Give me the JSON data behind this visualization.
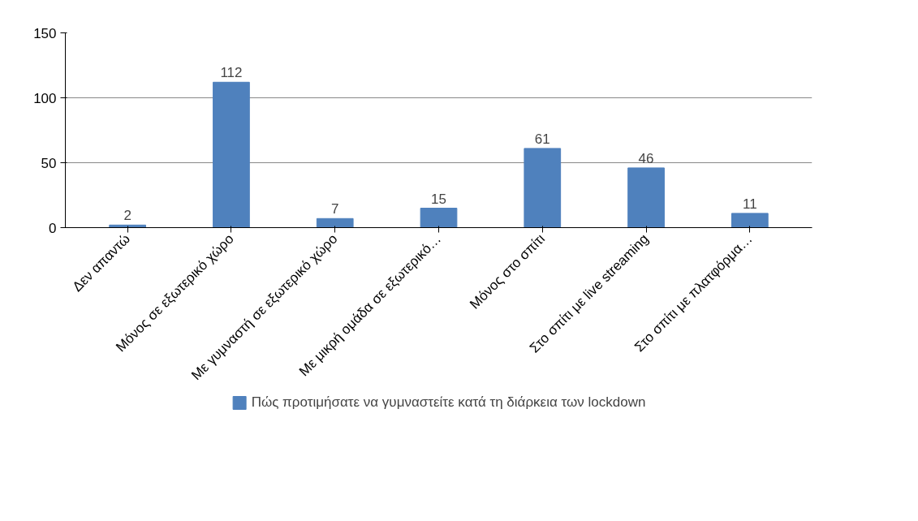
{
  "chart_data": {
    "type": "bar",
    "categories": [
      "Δεν απαντώ",
      "Μόνος σε εξωτερικό χώρο",
      "Με γυμναστή σε εξωτερικό χώρο",
      "Με μικρή ομάδα σε εξωτερικό…",
      "Μόνος στο σπίτι",
      "Στο σπίτι με live streaming",
      "Στο σπίτι με πλατφόρμα…"
    ],
    "series": [
      {
        "name": "Πώς προτιμήσατε να γυμναστείτε κατά τη διάρκεια των lockdown",
        "color": "#4f81bd",
        "values": [
          2,
          112,
          7,
          15,
          61,
          46,
          11
        ]
      }
    ],
    "ylim": [
      0,
      150
    ],
    "yticks": [
      0,
      50,
      100,
      150
    ],
    "grid": "y",
    "data_labels": true,
    "legend": "bottom"
  }
}
